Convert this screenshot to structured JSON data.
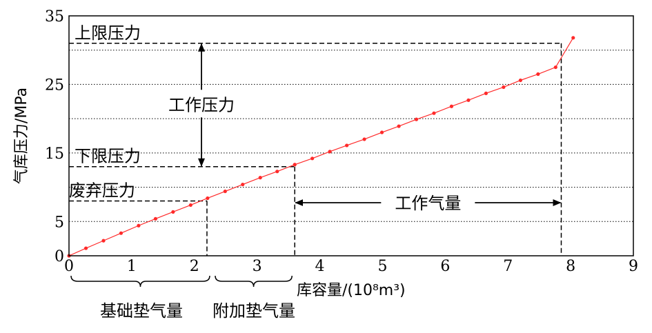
{
  "chart_data": {
    "type": "line",
    "xlabel": "库容量/(10⁸m³)",
    "ylabel": "气库压力/MPa",
    "xlim": [
      0,
      9
    ],
    "ylim": [
      0,
      35
    ],
    "xticks": [
      0,
      1,
      2,
      3,
      4,
      5,
      6,
      7,
      8,
      9
    ],
    "yticks": [
      0,
      5,
      15,
      25,
      35
    ],
    "grid": "horizontal dotted",
    "colors": {
      "series": "#ff2a2a",
      "axes": "#000000",
      "grid": "#000000"
    },
    "series": [
      {
        "x": [
          0,
          0.27,
          0.55,
          0.83,
          1.11,
          1.38,
          1.66,
          1.94,
          2.21,
          2.49,
          2.77,
          3.05,
          3.32,
          3.6,
          3.88,
          4.16,
          4.43,
          4.71,
          4.99,
          5.26,
          5.54,
          5.82,
          6.1,
          6.37,
          6.65,
          6.93,
          7.2,
          7.48,
          7.76,
          8.04
        ],
        "values": [
          0,
          1.1,
          2.2,
          3.3,
          4.4,
          5.4,
          6.4,
          7.4,
          8.4,
          9.4,
          10.4,
          11.4,
          12.3,
          13.3,
          14.2,
          15.2,
          16.1,
          17.0,
          18.0,
          18.9,
          19.9,
          20.8,
          21.8,
          22.7,
          23.7,
          24.6,
          25.6,
          26.5,
          27.5,
          31.8
        ]
      }
    ],
    "reference_levels": {
      "upper_pressure": {
        "label": "上限压力",
        "y": 31
      },
      "lower_pressure": {
        "label": "下限压力",
        "y": 13
      },
      "abandon_pressure": {
        "label": "废弃压力",
        "y": 8
      }
    },
    "reference_volumes": [
      2.2,
      3.6,
      7.85
    ],
    "annotations": {
      "working_pressure": "工作压力",
      "working_gas": "工作气量",
      "cushion_gas_base": "基础垫气量",
      "cushion_gas_additional": "附加垫气量"
    }
  }
}
